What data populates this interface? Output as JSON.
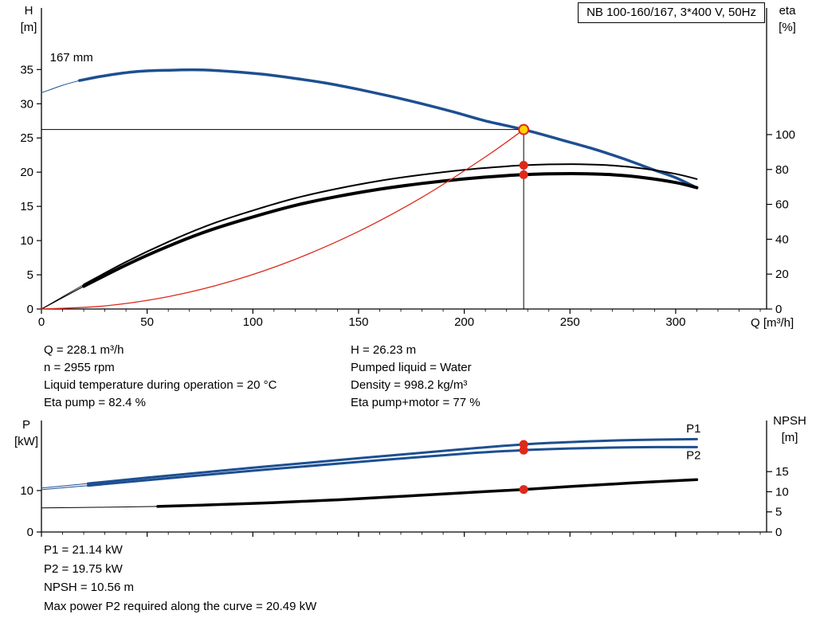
{
  "title_box": "NB 100-160/167, 3*400 V, 50Hz",
  "axis_corner_labels": {
    "top_left": [
      "H",
      "[m]"
    ],
    "top_right": [
      "eta",
      "[%]"
    ],
    "x_axis": "Q [m³/h]",
    "bottom_left": [
      "P",
      "[kW]"
    ],
    "bottom_right": [
      "NPSH",
      "[m]"
    ]
  },
  "info_top": {
    "left": [
      "Q = 228.1 m³/h",
      "n = 2955 rpm",
      "Liquid temperature during operation = 20 °C",
      "Eta pump = 82.4 %"
    ],
    "right": [
      "H = 26.23 m",
      "Pumped liquid = Water",
      "Density = 998.2 kg/m³",
      "Eta pump+motor = 77 %"
    ]
  },
  "info_bottom": [
    "P1 = 21.14 kW",
    "P2 = 19.75 kW",
    "NPSH = 10.56 m",
    "Max power P2 required along the curve = 20.49 kW"
  ],
  "colors": {
    "blue": "#1d4f91",
    "red": "#dd2a1b",
    "black": "#000000",
    "duty_fill": "#ffd400"
  },
  "chart_data": [
    {
      "type": "line",
      "title": "NB 100-160/167, 3*400 V, 50Hz — head and efficiency vs flow",
      "xlabel": "Q [m³/h]",
      "ylabel_left": "H [m]",
      "ylabel_right": "eta [%]",
      "xlim": [
        0,
        343
      ],
      "x_ticks": [
        0,
        50,
        100,
        150,
        200,
        250,
        300
      ],
      "x_minor_step": 10,
      "x_tick_labels": true,
      "ylim_left": [
        0,
        44
      ],
      "y_ticks_left": [
        0,
        5,
        10,
        15,
        20,
        25,
        30,
        35
      ],
      "ylim_right": [
        0,
        172.6
      ],
      "y_ticks_right": [
        0,
        20,
        40,
        60,
        80,
        100
      ],
      "series": [
        {
          "name": "pump-head-curve",
          "label": "167 mm",
          "axis": "left",
          "color": "blue",
          "width": 3.5,
          "thin_width": 1,
          "thin_until": 18,
          "points": [
            [
              0,
              31.6
            ],
            [
              10,
              32.7
            ],
            [
              18,
              33.4
            ],
            [
              30,
              34.1
            ],
            [
              45,
              34.7
            ],
            [
              60,
              34.9
            ],
            [
              75,
              34.95
            ],
            [
              90,
              34.7
            ],
            [
              105,
              34.3
            ],
            [
              120,
              33.7
            ],
            [
              135,
              33.0
            ],
            [
              150,
              32.1
            ],
            [
              165,
              31.1
            ],
            [
              180,
              30.0
            ],
            [
              195,
              28.8
            ],
            [
              210,
              27.5
            ],
            [
              228.1,
              26.23
            ],
            [
              245,
              24.8
            ],
            [
              260,
              23.5
            ],
            [
              275,
              22.0
            ],
            [
              290,
              20.3
            ],
            [
              300,
              19.2
            ],
            [
              310,
              17.7
            ]
          ]
        },
        {
          "name": "eta-pump-curve",
          "axis": "right",
          "color": "black",
          "width": 2,
          "thin_width": 0.8,
          "thin_until": 25,
          "points": [
            [
              0,
              0
            ],
            [
              20,
              14
            ],
            [
              40,
              27
            ],
            [
              60,
              38.5
            ],
            [
              80,
              48.5
            ],
            [
              100,
              56.5
            ],
            [
              120,
              63.5
            ],
            [
              140,
              69
            ],
            [
              160,
              73.5
            ],
            [
              180,
              77
            ],
            [
              200,
              79.8
            ],
            [
              220,
              81.8
            ],
            [
              228.1,
              82.4
            ],
            [
              240,
              82.9
            ],
            [
              255,
              83
            ],
            [
              270,
              82.3
            ],
            [
              285,
              80.5
            ],
            [
              300,
              77.5
            ],
            [
              310,
              74.5
            ]
          ]
        },
        {
          "name": "eta-pump-motor-curve",
          "axis": "right",
          "color": "black",
          "width": 4,
          "thin_width": 1.2,
          "thin_until": 25,
          "points": [
            [
              0,
              0
            ],
            [
              20,
              13
            ],
            [
              40,
              25.2
            ],
            [
              60,
              36
            ],
            [
              80,
              45.3
            ],
            [
              100,
              52.8
            ],
            [
              120,
              59.4
            ],
            [
              140,
              64.5
            ],
            [
              160,
              68.7
            ],
            [
              180,
              72
            ],
            [
              200,
              74.6
            ],
            [
              220,
              76.5
            ],
            [
              228.1,
              77
            ],
            [
              240,
              77.5
            ],
            [
              255,
              77.6
            ],
            [
              270,
              77
            ],
            [
              285,
              75.3
            ],
            [
              300,
              72.5
            ],
            [
              310,
              69.6
            ]
          ]
        },
        {
          "name": "system-curve",
          "axis": "left",
          "color": "red",
          "width": 1.3,
          "points": [
            [
              0,
              0
            ],
            [
              30,
              0.45
            ],
            [
              60,
              1.81
            ],
            [
              90,
              4.08
            ],
            [
              120,
              7.26
            ],
            [
              150,
              11.34
            ],
            [
              180,
              16.33
            ],
            [
              210,
              22.23
            ],
            [
              228.1,
              26.23
            ]
          ]
        }
      ],
      "crosshair": {
        "q": 228.1,
        "v": 26.23
      },
      "markers": [
        {
          "name": "duty-point",
          "style": "duty",
          "q": 228.1,
          "v": 26.23,
          "axis": "left"
        },
        {
          "name": "eta-pump-dot",
          "style": "dot",
          "q": 228.1,
          "v": 82.4,
          "axis": "right"
        },
        {
          "name": "eta-pump-motor-dot",
          "style": "dot",
          "q": 228.1,
          "v": 77,
          "axis": "right"
        }
      ],
      "annotations": [
        {
          "name": "impeller-size-label",
          "text": "167 mm",
          "q": 4,
          "v": 36.2,
          "axis": "left",
          "color": "black"
        }
      ]
    },
    {
      "type": "line",
      "title": "Power and NPSH vs flow",
      "xlabel": "Q [m³/h]",
      "ylabel_left": "P [kW]",
      "ylabel_right": "NPSH [m]",
      "xlim": [
        0,
        343
      ],
      "x_ticks": [
        0,
        50,
        100,
        150,
        200,
        250,
        300
      ],
      "x_minor_step": 10,
      "x_tick_labels": false,
      "ylim_left": [
        0,
        26.9
      ],
      "y_ticks_left": [
        0,
        10
      ],
      "ylim_right": [
        0,
        27.7
      ],
      "y_ticks_right": [
        0,
        5,
        10,
        15
      ],
      "series": [
        {
          "name": "p1-curve",
          "label": "P1",
          "axis": "left",
          "color": "blue",
          "width": 3,
          "thin_width": 1,
          "thin_until": 22,
          "points": [
            [
              0,
              10.6
            ],
            [
              22,
              11.7
            ],
            [
              50,
              13.1
            ],
            [
              100,
              15.5
            ],
            [
              150,
              17.8
            ],
            [
              200,
              20.0
            ],
            [
              228.1,
              21.14
            ],
            [
              250,
              21.7
            ],
            [
              280,
              22.2
            ],
            [
              310,
              22.4
            ]
          ]
        },
        {
          "name": "p2-curve",
          "label": "P2",
          "axis": "left",
          "color": "blue",
          "width": 3,
          "thin_width": 1,
          "thin_until": 22,
          "points": [
            [
              0,
              10.2
            ],
            [
              22,
              11.2
            ],
            [
              50,
              12.5
            ],
            [
              100,
              14.8
            ],
            [
              150,
              16.9
            ],
            [
              200,
              18.9
            ],
            [
              228.1,
              19.75
            ],
            [
              250,
              20.15
            ],
            [
              280,
              20.45
            ],
            [
              310,
              20.49
            ]
          ]
        },
        {
          "name": "npsh-curve",
          "axis": "right",
          "color": "black",
          "width": 3.5,
          "thin_width": 1,
          "thin_until": 55,
          "points": [
            [
              0,
              6.0
            ],
            [
              30,
              6.15
            ],
            [
              55,
              6.35
            ],
            [
              80,
              6.75
            ],
            [
              110,
              7.3
            ],
            [
              140,
              8.0
            ],
            [
              170,
              8.85
            ],
            [
              200,
              9.75
            ],
            [
              228.1,
              10.56
            ],
            [
              250,
              11.3
            ],
            [
              280,
              12.2
            ],
            [
              310,
              13.0
            ]
          ]
        }
      ],
      "markers": [
        {
          "name": "p1-dot",
          "style": "dot",
          "q": 228.1,
          "v": 21.14,
          "axis": "left"
        },
        {
          "name": "p2-dot",
          "style": "dot",
          "q": 228.1,
          "v": 19.75,
          "axis": "left"
        },
        {
          "name": "npsh-dot",
          "style": "dot",
          "q": 228.1,
          "v": 10.56,
          "axis": "right"
        }
      ],
      "annotations": [
        {
          "name": "p1-curve-label",
          "text": "P1",
          "q": 305,
          "v": 24.0,
          "axis": "left",
          "color": "blue"
        },
        {
          "name": "p2-curve-label",
          "text": "P2",
          "q": 305,
          "v": 17.6,
          "axis": "left",
          "color": "blue"
        }
      ]
    }
  ]
}
